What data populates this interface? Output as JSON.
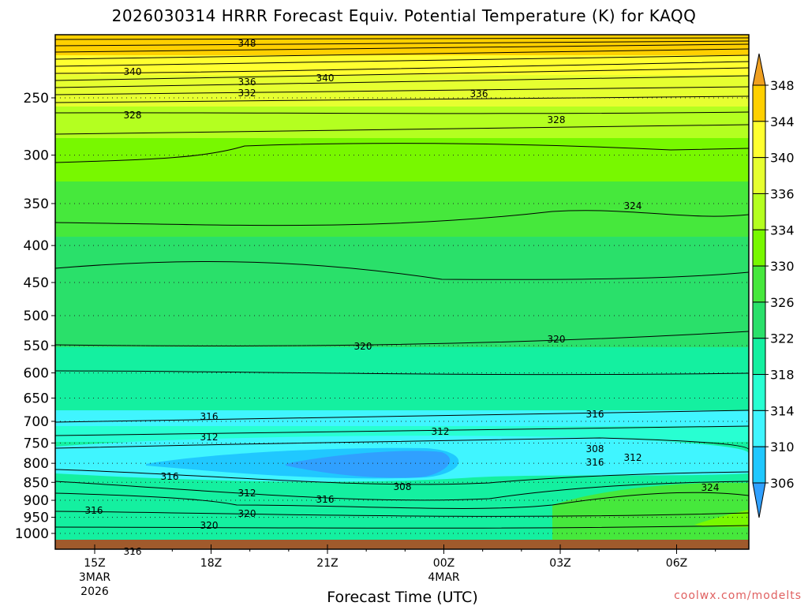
{
  "chart_data": {
    "type": "heatmap",
    "title": "2026030314 HRRR Forecast Equiv. Potential Temperature (K) for KAQQ",
    "xlabel": "Forecast Time (UTC)",
    "ylabel": "",
    "y_scale": "log-pressure",
    "y_reversed": true,
    "ylim": [
      1025,
      200
    ],
    "y_ticks": [
      "250",
      "300",
      "350",
      "400",
      "450",
      "500",
      "550",
      "600",
      "650",
      "700",
      "750",
      "800",
      "850",
      "900",
      "950",
      "1000"
    ],
    "x_ticks": [
      {
        "label": "15Z",
        "sub1": "3MAR",
        "sub2": "2026"
      },
      {
        "label": "18Z",
        "sub1": "",
        "sub2": ""
      },
      {
        "label": "21Z",
        "sub1": "",
        "sub2": ""
      },
      {
        "label": "00Z",
        "sub1": "4MAR",
        "sub2": ""
      },
      {
        "label": "03Z",
        "sub1": "",
        "sub2": ""
      },
      {
        "label": "06Z",
        "sub1": "",
        "sub2": ""
      }
    ],
    "grid": true,
    "colorbar": {
      "labels": [
        "348",
        "344",
        "340",
        "336",
        "334",
        "330",
        "326",
        "322",
        "318",
        "314",
        "310",
        "306"
      ],
      "colors": [
        "#f0a020",
        "#ffd000",
        "#ffff30",
        "#e6ff30",
        "#b4ff20",
        "#78f800",
        "#46e83c",
        "#2ae06a",
        "#14f0a0",
        "#28ffd2",
        "#40f5ff",
        "#20c8ff",
        "#30a0ff"
      ]
    },
    "contour_labels": [
      "348",
      "340",
      "340",
      "336",
      "336",
      "332",
      "328",
      "328",
      "324",
      "320",
      "320",
      "316",
      "316",
      "312",
      "312",
      "308",
      "308",
      "312",
      "316",
      "316",
      "316",
      "316",
      "312",
      "324",
      "320",
      "320",
      "316"
    ],
    "ground_color": "#a05a2c"
  },
  "watermark": "coolwx.com/modelts"
}
